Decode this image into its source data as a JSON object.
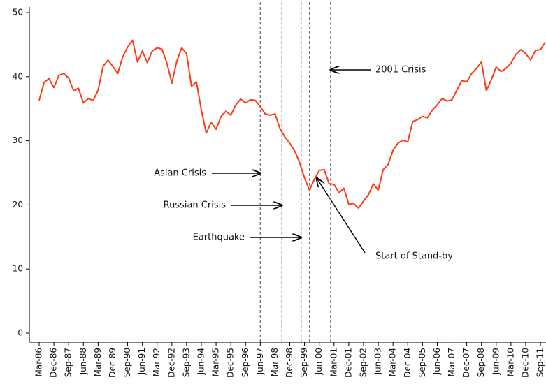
{
  "chart_data": {
    "type": "line",
    "categories": [
      "Mar-86",
      null,
      null,
      "Dec-86",
      null,
      null,
      "Sep-87",
      null,
      null,
      "Jun-88",
      null,
      null,
      "Mar-89",
      null,
      null,
      "Dec-89",
      null,
      null,
      "Sep-90",
      null,
      null,
      "Jun-91",
      null,
      null,
      "Mar-92",
      null,
      null,
      "Dec-92",
      null,
      null,
      "Sep-93",
      null,
      null,
      "Jun-94",
      null,
      null,
      "Mar-95",
      null,
      null,
      "Dec-95",
      null,
      null,
      "Sep-96",
      null,
      null,
      "Jun-97",
      null,
      null,
      "Mar-98",
      null,
      null,
      "Dec-98",
      null,
      null,
      "Sep-99",
      null,
      null,
      "Jun-00",
      null,
      null,
      "Mar-01",
      null,
      null,
      "Dec-01",
      null,
      null,
      "Sep-02",
      null,
      null,
      "Jun-03",
      null,
      null,
      "Mar-04",
      null,
      null,
      "Dec-04",
      null,
      null,
      "Sep-05",
      null,
      null,
      "Jun-06",
      null,
      null,
      "Mar-07",
      null,
      null,
      "Dec-07",
      null,
      null,
      "Sep-08",
      null,
      null,
      "Jun-09",
      null,
      null,
      "Mar-10",
      null,
      null,
      "Dec-10",
      null,
      null,
      "Sep-11",
      null
    ],
    "series": [
      {
        "color": "#ff3b14",
        "values": [
          36.3,
          39.1,
          39.7,
          38.3,
          40.2,
          40.5,
          39.8,
          37.8,
          38.2,
          35.9,
          36.6,
          36.3,
          37.9,
          41.6,
          42.6,
          41.6,
          40.5,
          43.1,
          44.6,
          45.7,
          42.3,
          44.0,
          42.2,
          44.0,
          44.5,
          44.3,
          42.1,
          39.0,
          42.4,
          44.5,
          43.6,
          38.5,
          39.2,
          34.8,
          31.2,
          32.9,
          31.8,
          33.8,
          34.6,
          34.0,
          35.6,
          36.5,
          35.9,
          36.4,
          36.3,
          35.3,
          34.2,
          34.0,
          34.2,
          31.9,
          30.6,
          29.6,
          28.4,
          26.6,
          24.2,
          22.3,
          24.0,
          25.4,
          25.5,
          23.3,
          23.2,
          21.9,
          22.6,
          20.1,
          20.2,
          19.5,
          20.6,
          21.6,
          23.3,
          22.3,
          25.5,
          26.3,
          28.5,
          29.6,
          30.1,
          29.8,
          33.0,
          33.3,
          33.8,
          33.6,
          34.8,
          35.6,
          36.6,
          36.2,
          36.4,
          37.9,
          39.4,
          39.2,
          40.5,
          41.3,
          42.3,
          37.8,
          39.5,
          41.5,
          40.8,
          41.3,
          42.1,
          43.5,
          44.2,
          43.6,
          42.6,
          44.1,
          44.2,
          45.4
        ]
      }
    ],
    "ylim": [
      0,
      50
    ],
    "yticks": [
      0,
      10,
      20,
      30,
      40,
      50
    ],
    "events": [
      {
        "label": "Asian Crisis",
        "x": 45
      },
      {
        "label": "Russian Crisis",
        "x": 49.4
      },
      {
        "label": "Earthquake",
        "x": 53.3
      },
      {
        "label": "Start of Stand-by",
        "x": 55
      },
      {
        "label": "2001 Crisis",
        "x": 59.3
      }
    ]
  }
}
